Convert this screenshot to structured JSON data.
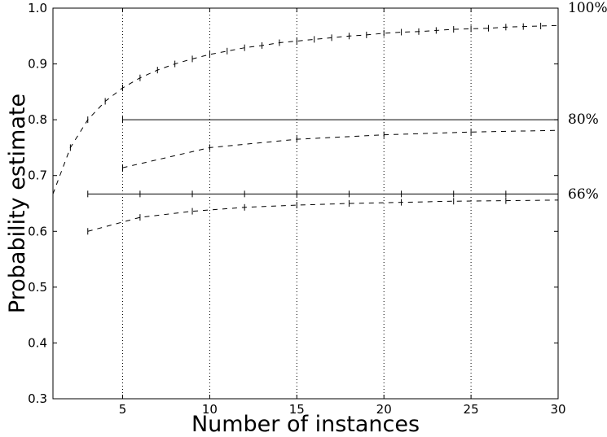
{
  "chart_data": {
    "type": "line",
    "xlabel": "Number of instances",
    "ylabel": "Probability estimate",
    "xlim": [
      1,
      30
    ],
    "ylim": [
      0.3,
      1.0
    ],
    "xticks": [
      5,
      10,
      15,
      20,
      25,
      30
    ],
    "yticks": [
      0.3,
      0.4,
      0.5,
      0.6,
      0.7,
      0.8,
      0.9,
      1.0
    ],
    "grid": "vertical-dotted",
    "right_labels": [
      {
        "text": "100%",
        "y": 1.0
      },
      {
        "text": "80%",
        "y": 0.8
      },
      {
        "text": "66%",
        "y": 0.666
      }
    ],
    "series": [
      {
        "style": "dashed",
        "x": [
          1,
          2,
          3,
          4,
          5,
          6,
          7,
          8,
          9,
          10,
          11,
          12,
          13,
          14,
          15,
          16,
          17,
          18,
          19,
          20,
          21,
          22,
          23,
          24,
          25,
          26,
          27,
          28,
          29,
          30
        ],
        "values": [
          0.667,
          0.75,
          0.8,
          0.833,
          0.857,
          0.875,
          0.889,
          0.9,
          0.909,
          0.917,
          0.923,
          0.929,
          0.933,
          0.938,
          0.941,
          0.944,
          0.947,
          0.95,
          0.952,
          0.955,
          0.957,
          0.958,
          0.96,
          0.962,
          0.963,
          0.964,
          0.966,
          0.967,
          0.968,
          0.969
        ]
      },
      {
        "style": "solid",
        "x": [
          5,
          30
        ],
        "values": [
          0.8,
          0.8
        ]
      },
      {
        "style": "dashed",
        "x": [
          5,
          10,
          15,
          20,
          25,
          30
        ],
        "values": [
          0.714,
          0.75,
          0.765,
          0.773,
          0.778,
          0.781
        ]
      },
      {
        "style": "solid",
        "x": [
          3,
          6,
          9,
          12,
          15,
          18,
          21,
          24,
          27,
          30
        ],
        "values": [
          0.667,
          0.667,
          0.667,
          0.667,
          0.667,
          0.667,
          0.667,
          0.667,
          0.667,
          0.667
        ]
      },
      {
        "style": "dashed",
        "x": [
          3,
          6,
          9,
          12,
          15,
          18,
          21,
          24,
          27,
          30
        ],
        "values": [
          0.6,
          0.625,
          0.636,
          0.643,
          0.647,
          0.65,
          0.652,
          0.654,
          0.655,
          0.656
        ]
      }
    ]
  }
}
